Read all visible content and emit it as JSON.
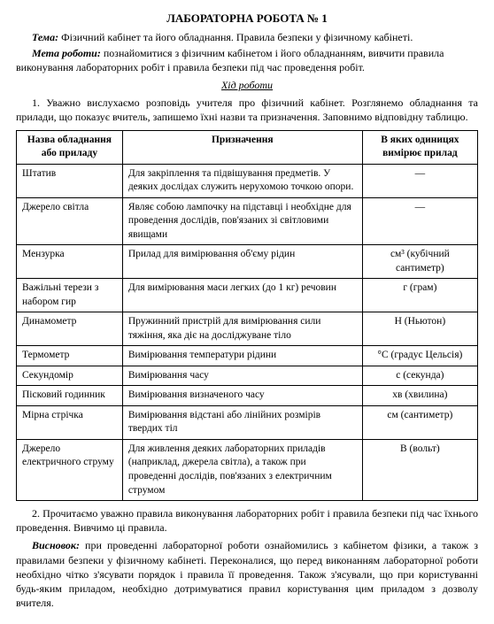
{
  "title": "ЛАБОРАТОРНА РОБОТА № 1",
  "topic_label": "Тема:",
  "topic_text": "Фізичний кабінет та його обладнання. Правила безпеки у фізичному кабінеті.",
  "objective_label": "Мета роботи:",
  "objective_text": "познайомитися з фізичним кабінетом і його обладнанням, вивчити правила виконування лабораторних робіт і правила безпеки під час проведення робіт.",
  "procedure_heading": "Хід роботи",
  "step1": "1. Уважно вислухаємо розповідь учителя про фізичний кабінет. Розглянемо обладнання та прилади, що показує вчитель, запишемо їхні назви та призначення. Заповнимо відповідну таблицю.",
  "table": {
    "headers": {
      "col1": "Назва обладнання або приладу",
      "col2": "Призначення",
      "col3": "В яких одиницях вимірює прилад"
    },
    "rows": [
      {
        "name": "Штатив",
        "purpose": "Для закріплення та підвішування предметів. У деяких дослідах служить нерухомою точкою опори.",
        "units": "—"
      },
      {
        "name": "Джерело світла",
        "purpose": "Являє собою лампочку на підставці і необхідне для проведення дослідів, пов'язаних зі світловими явищами",
        "units": "—"
      },
      {
        "name": "Мензурка",
        "purpose": "Прилад для вимірювання об'єму рідин",
        "units": "см³ (кубічний сантиметр)"
      },
      {
        "name": "Важільні терези з набором гир",
        "purpose": "Для вимірювання маси легких (до 1 кг) речовин",
        "units": "г (грам)"
      },
      {
        "name": "Динамометр",
        "purpose": "Пружинний пристрій для вимірювання сили тяжіння, яка діє на досліджуване тіло",
        "units": "Н (Ньютон)"
      },
      {
        "name": "Термометр",
        "purpose": "Вимірювання температури рідини",
        "units": "°С (градус Цельсія)"
      },
      {
        "name": "Секундомір",
        "purpose": "Вимірювання часу",
        "units": "с (секунда)"
      },
      {
        "name": "Пісковий годинник",
        "purpose": "Вимірювання визначеного часу",
        "units": "хв (хвилина)"
      },
      {
        "name": "Мірна стрічка",
        "purpose": "Вимірювання відстані або лінійних розмірів твердих тіл",
        "units": "см (сантиметр)"
      },
      {
        "name": "Джерело електричного струму",
        "purpose": "Для живлення деяких лабораторних приладів (наприклад, джерела світла), а також при проведенні дослідів, пов'язаних з електричним струмом",
        "units": "В (вольт)"
      }
    ]
  },
  "step2": "2. Прочитаємо уважно правила виконування лабораторних робіт і правила безпеки під час їхнього проведення. Вивчимо ці правила.",
  "conclusion_label": "Висновок:",
  "conclusion_text": "при проведенні лабораторної роботи ознайомились з кабінетом фізики, а також з правилами безпеки у фізичному кабінеті. Переконалися, що перед виконанням лабораторної роботи необхідно чітко з'ясувати порядок і правила її проведення. Також з'ясували, що при користуванні будь-яким приладом, необхідно дотримуватися правил користування цим приладом з дозволу вчителя."
}
